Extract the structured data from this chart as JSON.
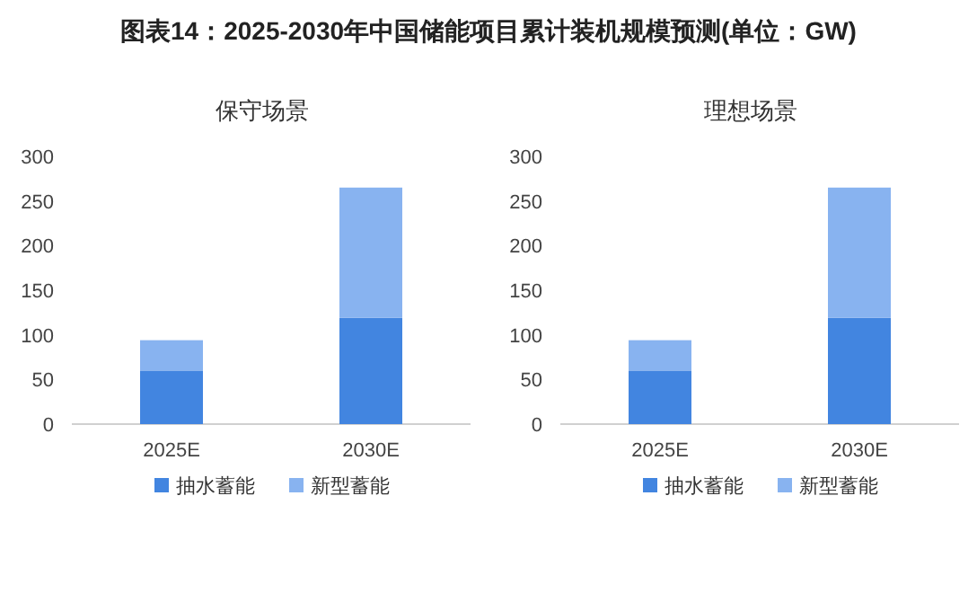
{
  "chart_data": [
    {
      "type": "bar",
      "title": "图表14：2025-2030年中国储能项目累计装机规模预测(单位：GW)",
      "subtitle": "保守场景",
      "categories": [
        "2025E",
        "2030E"
      ],
      "stacked": true,
      "ylim": [
        0,
        300
      ],
      "yticks": [
        0,
        50,
        100,
        150,
        200,
        250,
        300
      ],
      "legend": "bottom",
      "grid": false,
      "series": [
        {
          "name": "抽水蓄能",
          "color": "#4285e0",
          "values": [
            60,
            119
          ]
        },
        {
          "name": "新型蓄能",
          "color": "#88b3f0",
          "values": [
            34,
            146
          ]
        }
      ]
    },
    {
      "type": "bar",
      "subtitle": "理想场景",
      "categories": [
        "2025E",
        "2030E"
      ],
      "stacked": true,
      "ylim": [
        0,
        300
      ],
      "yticks": [
        0,
        50,
        100,
        150,
        200,
        250,
        300
      ],
      "legend": "bottom",
      "grid": false,
      "series": [
        {
          "name": "抽水蓄能",
          "color": "#4285e0",
          "values": [
            60,
            119
          ]
        },
        {
          "name": "新型蓄能",
          "color": "#88b3f0",
          "values": [
            34,
            146
          ]
        }
      ]
    }
  ]
}
